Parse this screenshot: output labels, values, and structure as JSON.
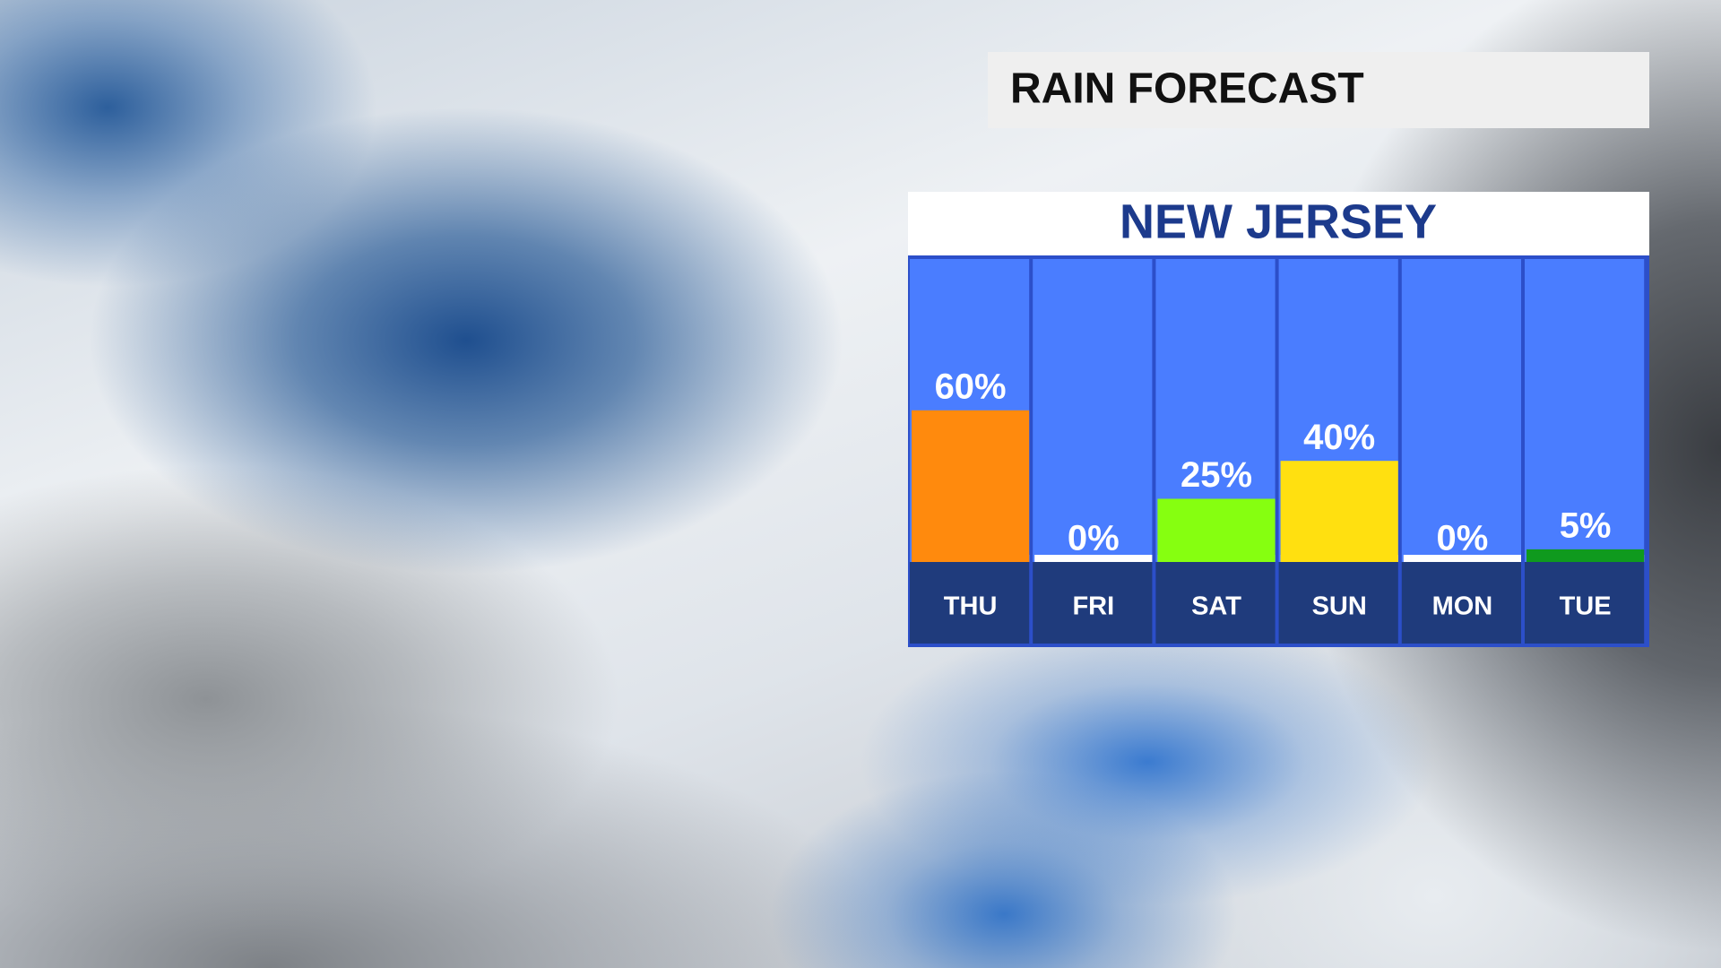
{
  "chart_data": {
    "type": "bar",
    "title": "RAIN FORECAST",
    "subtitle": "NEW JERSEY",
    "categories": [
      "THU",
      "FRI",
      "SAT",
      "SUN",
      "MON",
      "TUE"
    ],
    "values": [
      60,
      0,
      25,
      40,
      0,
      5
    ],
    "value_labels": [
      "60%",
      "0%",
      "25%",
      "40%",
      "0%",
      "5%"
    ],
    "colors": [
      "#ff8a0d",
      "#ffffff",
      "#86ff10",
      "#ffe010",
      "#ffffff",
      "#0f9a1e"
    ]
  }
}
